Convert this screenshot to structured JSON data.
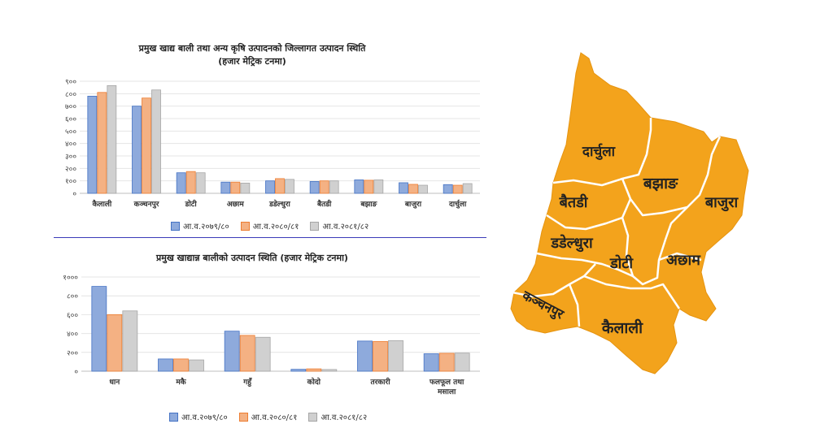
{
  "colors": {
    "series": [
      "#8eaadc",
      "#f4b183",
      "#d0d0d0"
    ],
    "series_stroke": [
      "#4472c4",
      "#ed7d31",
      "#a5a5a5"
    ],
    "map_fill": "#f3a31c",
    "map_border": "#ffffff",
    "divider": "#3b3bb8"
  },
  "chart_data": [
    {
      "type": "bar",
      "title": "प्रमुख खाद्य बाली तथा अन्य कृषि उत्पादनको जिल्लागत उत्पादन स्थिति",
      "subtitle": "(हजार मेट्रिक टनमा)",
      "categories": [
        "कैलाली",
        "कञ्चनपुर",
        "डोटी",
        "अछाम",
        "डडेल्धुरा",
        "बैतडी",
        "बझाङ",
        "बाजुरा",
        "दार्चुला"
      ],
      "series": [
        {
          "name": "आ.व.२०७९/८०",
          "values": [
            780,
            700,
            165,
            90,
            100,
            95,
            108,
            85,
            70
          ]
        },
        {
          "name": "आ.व.२०८०/८१",
          "values": [
            810,
            765,
            175,
            90,
            118,
            100,
            105,
            72,
            65
          ]
        },
        {
          "name": "आ.व.२०८१/८२",
          "values": [
            865,
            830,
            165,
            82,
            112,
            100,
            108,
            65,
            78
          ]
        }
      ],
      "ylim": [
        0,
        900
      ],
      "yticks": [
        "०",
        "१००",
        "२००",
        "३००",
        "४००",
        "५००",
        "६००",
        "७००",
        "८००",
        "९००"
      ],
      "grid": true,
      "legend": "bottom"
    },
    {
      "type": "bar",
      "title": "प्रमुख खाद्यान्न बालीको उत्पादन स्थिति (हजार मेट्रिक टनमा)",
      "categories": [
        "धान",
        "मकै",
        "गहुँ",
        "कोदो",
        "तरकारी",
        "फलफूल तथा मसाला"
      ],
      "series": [
        {
          "name": "आ.व.२०७९/८०",
          "values": [
            900,
            130,
            425,
            20,
            320,
            185
          ]
        },
        {
          "name": "आ.व.२०८०/८१",
          "values": [
            600,
            130,
            380,
            25,
            315,
            190
          ]
        },
        {
          "name": "आ.व.२०८१/८२",
          "values": [
            640,
            120,
            360,
            18,
            325,
            192
          ]
        }
      ],
      "ylim": [
        0,
        1000
      ],
      "yticks": [
        "०",
        "२००",
        "४००",
        "६००",
        "८००",
        "१०००"
      ],
      "grid": true,
      "legend": "bottom"
    }
  ],
  "map": {
    "districts": [
      "दार्चुला",
      "बझाङ",
      "बाजुरा",
      "बैतडी",
      "डडेल्धुरा",
      "डोटी",
      "अछाम",
      "कञ्चनपुर",
      "कैलाली"
    ]
  }
}
